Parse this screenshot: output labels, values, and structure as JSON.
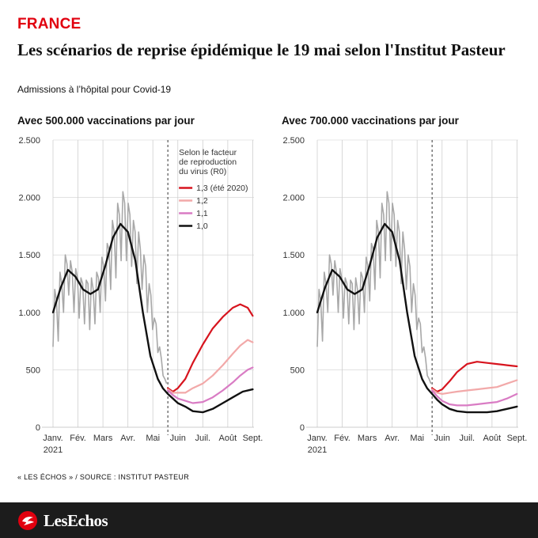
{
  "header": {
    "tag": "FRANCE",
    "title": "Les scénarios de reprise épidémique le 19 mai selon l'Institut Pasteur",
    "subtitle": "Admissions à l’hôpital pour Covid-19"
  },
  "footer": {
    "source": "« LES ÉCHOS » / SOURCE : INSTITUT PASTEUR",
    "logo_text": "LesEchos"
  },
  "colors": {
    "r13": "#d7141e",
    "r12": "#f2a9a9",
    "r11": "#d97cc4",
    "r10": "#111111",
    "observed": "#a8a8a8",
    "grid": "#cfcfcf"
  },
  "chart_data": [
    {
      "type": "line",
      "title": "Avec 500.000 vaccinations par jour",
      "xlabel": "",
      "ylabel": "",
      "ylim": [
        0,
        2500
      ],
      "y_ticks": [
        0,
        500,
        1000,
        1500,
        2000,
        2500
      ],
      "y_tick_labels": [
        "0",
        "500",
        "1.000",
        "1.500",
        "2.000",
        "2.500"
      ],
      "x_range_month": [
        0,
        8.05
      ],
      "x_ticks": [
        0,
        1,
        2,
        3,
        4,
        5,
        6,
        7,
        8
      ],
      "x_tick_labels": [
        "Janv.",
        "Fév.",
        "Mars",
        "Avr.",
        "Mai",
        "Juin",
        "Juil.",
        "Août",
        "Sept."
      ],
      "x_year_label": "2021",
      "projection_start_month": 4.6,
      "legend": {
        "title_lines": [
          "Selon le facteur",
          "de reproduction",
          "du virus (R0)"
        ],
        "placement": "top-right",
        "entries": [
          {
            "label": "1,3 (été 2020)",
            "key": "r13"
          },
          {
            "label": "1,2",
            "key": "r12"
          },
          {
            "label": "1,1",
            "key": "r11"
          },
          {
            "label": "1,0",
            "key": "r10"
          }
        ]
      },
      "observed": {
        "x": [
          0.0,
          0.07,
          0.14,
          0.21,
          0.28,
          0.35,
          0.42,
          0.49,
          0.56,
          0.63,
          0.7,
          0.77,
          0.84,
          0.91,
          0.98,
          1.05,
          1.12,
          1.19,
          1.26,
          1.33,
          1.4,
          1.47,
          1.54,
          1.61,
          1.68,
          1.75,
          1.82,
          1.89,
          1.96,
          2.03,
          2.1,
          2.17,
          2.24,
          2.31,
          2.38,
          2.45,
          2.52,
          2.59,
          2.66,
          2.73,
          2.8,
          2.87,
          2.94,
          3.01,
          3.08,
          3.15,
          3.22,
          3.29,
          3.36,
          3.43,
          3.5,
          3.57,
          3.64,
          3.71,
          3.78,
          3.85,
          3.92,
          3.99,
          4.06,
          4.13,
          4.2,
          4.27,
          4.34,
          4.41,
          4.48,
          4.55
        ],
        "values": [
          700,
          1200,
          1100,
          750,
          1350,
          1250,
          1000,
          1500,
          1420,
          1150,
          1450,
          1350,
          1000,
          1380,
          1300,
          950,
          1300,
          1250,
          900,
          1280,
          1250,
          850,
          1300,
          1200,
          900,
          1350,
          1300,
          1000,
          1480,
          1400,
          1100,
          1600,
          1550,
          1200,
          1800,
          1700,
          1300,
          1950,
          1850,
          1450,
          2050,
          1950,
          1450,
          1950,
          1850,
          1400,
          1800,
          1700,
          1250,
          1700,
          1550,
          1200,
          1500,
          1400,
          1000,
          1250,
          1150,
          850,
          950,
          900,
          650,
          700,
          600,
          450,
          420,
          380
        ]
      },
      "series": [
        {
          "name": "1,3 (été 2020)",
          "key": "r13",
          "x": [
            4.6,
            4.8,
            5.0,
            5.3,
            5.6,
            6.0,
            6.4,
            6.8,
            7.2,
            7.5,
            7.8,
            8.0
          ],
          "values": [
            340,
            310,
            340,
            420,
            560,
            720,
            860,
            960,
            1040,
            1070,
            1040,
            970
          ]
        },
        {
          "name": "1,2",
          "key": "r12",
          "x": [
            4.6,
            4.8,
            5.0,
            5.3,
            5.6,
            6.0,
            6.4,
            6.8,
            7.2,
            7.5,
            7.8,
            8.0
          ],
          "values": [
            330,
            300,
            300,
            300,
            340,
            380,
            450,
            540,
            640,
            710,
            760,
            740
          ]
        },
        {
          "name": "1,1",
          "key": "r11",
          "x": [
            4.6,
            4.8,
            5.0,
            5.3,
            5.6,
            6.0,
            6.4,
            6.8,
            7.2,
            7.5,
            7.8,
            8.0
          ],
          "values": [
            320,
            280,
            250,
            230,
            210,
            220,
            260,
            320,
            390,
            450,
            500,
            520
          ]
        },
        {
          "name": "1,0",
          "key": "r10",
          "x": [
            0.0,
            0.3,
            0.6,
            0.9,
            1.2,
            1.5,
            1.8,
            2.1,
            2.4,
            2.7,
            3.0,
            3.3,
            3.6,
            3.9,
            4.2,
            4.4,
            4.6,
            4.8,
            5.0,
            5.3,
            5.6,
            6.0,
            6.4,
            6.8,
            7.2,
            7.6,
            8.0
          ],
          "values": [
            1000,
            1210,
            1370,
            1310,
            1200,
            1160,
            1200,
            1410,
            1650,
            1770,
            1700,
            1450,
            1000,
            620,
            420,
            340,
            290,
            250,
            210,
            180,
            140,
            130,
            160,
            210,
            260,
            310,
            330
          ]
        }
      ]
    },
    {
      "type": "line",
      "title": "Avec 700.000 vaccinations par jour",
      "xlabel": "",
      "ylabel": "",
      "ylim": [
        0,
        2500
      ],
      "y_ticks": [
        0,
        500,
        1000,
        1500,
        2000,
        2500
      ],
      "y_tick_labels": [
        "0",
        "500",
        "1.000",
        "1.500",
        "2.000",
        "2.500"
      ],
      "x_range_month": [
        0,
        8.05
      ],
      "x_ticks": [
        0,
        1,
        2,
        3,
        4,
        5,
        6,
        7,
        8
      ],
      "x_tick_labels": [
        "Janv.",
        "Fév.",
        "Mars",
        "Avr.",
        "Mai",
        "Juin",
        "Juil.",
        "Août",
        "Sept."
      ],
      "x_year_label": "2021",
      "projection_start_month": 4.6,
      "observed": {
        "x": [
          0.0,
          0.07,
          0.14,
          0.21,
          0.28,
          0.35,
          0.42,
          0.49,
          0.56,
          0.63,
          0.7,
          0.77,
          0.84,
          0.91,
          0.98,
          1.05,
          1.12,
          1.19,
          1.26,
          1.33,
          1.4,
          1.47,
          1.54,
          1.61,
          1.68,
          1.75,
          1.82,
          1.89,
          1.96,
          2.03,
          2.1,
          2.17,
          2.24,
          2.31,
          2.38,
          2.45,
          2.52,
          2.59,
          2.66,
          2.73,
          2.8,
          2.87,
          2.94,
          3.01,
          3.08,
          3.15,
          3.22,
          3.29,
          3.36,
          3.43,
          3.5,
          3.57,
          3.64,
          3.71,
          3.78,
          3.85,
          3.92,
          3.99,
          4.06,
          4.13,
          4.2,
          4.27,
          4.34,
          4.41,
          4.48,
          4.55
        ],
        "values": [
          700,
          1200,
          1100,
          750,
          1350,
          1250,
          1000,
          1500,
          1420,
          1150,
          1450,
          1350,
          1000,
          1380,
          1300,
          950,
          1300,
          1250,
          900,
          1280,
          1250,
          850,
          1300,
          1200,
          900,
          1350,
          1300,
          1000,
          1480,
          1400,
          1100,
          1600,
          1550,
          1200,
          1800,
          1700,
          1300,
          1950,
          1850,
          1450,
          2050,
          1950,
          1450,
          1950,
          1850,
          1400,
          1800,
          1700,
          1250,
          1700,
          1550,
          1200,
          1500,
          1400,
          1000,
          1250,
          1150,
          850,
          950,
          900,
          650,
          700,
          600,
          450,
          420,
          380
        ]
      },
      "series": [
        {
          "name": "1,3 (été 2020)",
          "key": "r13",
          "x": [
            4.6,
            4.8,
            5.0,
            5.3,
            5.6,
            6.0,
            6.4,
            6.8,
            7.2,
            7.6,
            8.0
          ],
          "values": [
            340,
            310,
            330,
            400,
            480,
            550,
            570,
            560,
            550,
            540,
            530
          ]
        },
        {
          "name": "1,2",
          "key": "r12",
          "x": [
            4.6,
            4.8,
            5.0,
            5.3,
            5.6,
            6.0,
            6.4,
            6.8,
            7.2,
            7.6,
            8.0
          ],
          "values": [
            330,
            300,
            290,
            300,
            310,
            320,
            330,
            340,
            350,
            380,
            410
          ]
        },
        {
          "name": "1,1",
          "key": "r11",
          "x": [
            4.6,
            4.8,
            5.0,
            5.3,
            5.6,
            6.0,
            6.4,
            6.8,
            7.2,
            7.6,
            8.0
          ],
          "values": [
            320,
            270,
            230,
            200,
            190,
            190,
            200,
            210,
            220,
            250,
            290
          ]
        },
        {
          "name": "1,0",
          "key": "r10",
          "x": [
            0.0,
            0.3,
            0.6,
            0.9,
            1.2,
            1.5,
            1.8,
            2.1,
            2.4,
            2.7,
            3.0,
            3.3,
            3.6,
            3.9,
            4.2,
            4.4,
            4.6,
            4.8,
            5.0,
            5.3,
            5.6,
            6.0,
            6.4,
            6.8,
            7.2,
            7.6,
            8.0
          ],
          "values": [
            1000,
            1210,
            1370,
            1310,
            1200,
            1160,
            1200,
            1410,
            1650,
            1770,
            1700,
            1450,
            1000,
            620,
            420,
            340,
            290,
            240,
            200,
            160,
            140,
            130,
            130,
            130,
            140,
            160,
            180
          ]
        }
      ]
    }
  ]
}
